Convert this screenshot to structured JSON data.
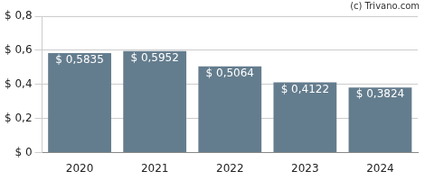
{
  "chart_data": {
    "type": "bar",
    "annotations": [
      "(c) Trivano.com"
    ],
    "categories": [
      "2020",
      "2021",
      "2022",
      "2023",
      "2024"
    ],
    "values": [
      0.5835,
      0.5952,
      0.5064,
      0.4122,
      0.3824
    ],
    "value_labels": [
      "$ 0,5835",
      "$ 0,5952",
      "$ 0,5064",
      "$ 0,4122",
      "$ 0,3824"
    ],
    "data_labels": true,
    "color": "#647d8e",
    "ylim": [
      0,
      0.8
    ],
    "yticks": [
      {
        "value": 0,
        "label": "$ 0"
      },
      {
        "value": 0.2,
        "label": "$ 0,2"
      },
      {
        "value": 0.4,
        "label": "$ 0,4"
      },
      {
        "value": 0.6,
        "label": "$ 0,6"
      },
      {
        "value": 0.8,
        "label": "$ 0,8"
      }
    ],
    "grid": true
  }
}
